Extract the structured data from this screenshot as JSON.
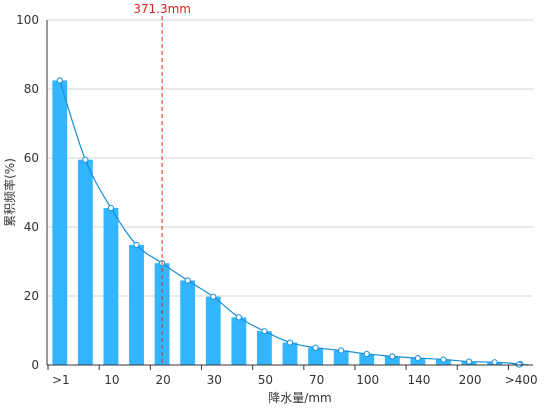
{
  "chart_data": {
    "type": "bar",
    "x_axis_title": "降水量/mm",
    "y_axis_title": "累积频率(%)",
    "ylim": [
      0,
      100
    ],
    "y_ticks": [
      "0",
      "20",
      "40",
      "60",
      "80",
      "100"
    ],
    "x_tick_labels": [
      ">1",
      "10",
      "20",
      "30",
      "50",
      "70",
      "100",
      "140",
      "200",
      ">400"
    ],
    "values": [
      82.5,
      59.5,
      45.5,
      34.8,
      29.5,
      24.5,
      19.8,
      13.8,
      9.8,
      6.5,
      5.0,
      4.2,
      3.2,
      2.5,
      2.0,
      1.6,
      1.0,
      0.8,
      0.3
    ],
    "line_values": [
      82.5,
      59.5,
      45.5,
      34.8,
      29.5,
      24.5,
      19.8,
      13.8,
      9.8,
      6.5,
      5.0,
      4.2,
      3.2,
      2.5,
      2.0,
      1.6,
      1.0,
      0.8,
      0.3,
      0.1
    ],
    "marker": {
      "label": "371.3mm",
      "color": "#e02020"
    },
    "bar_color": "#33b6ff",
    "line_color": "#1a8fd6",
    "grid": true
  }
}
